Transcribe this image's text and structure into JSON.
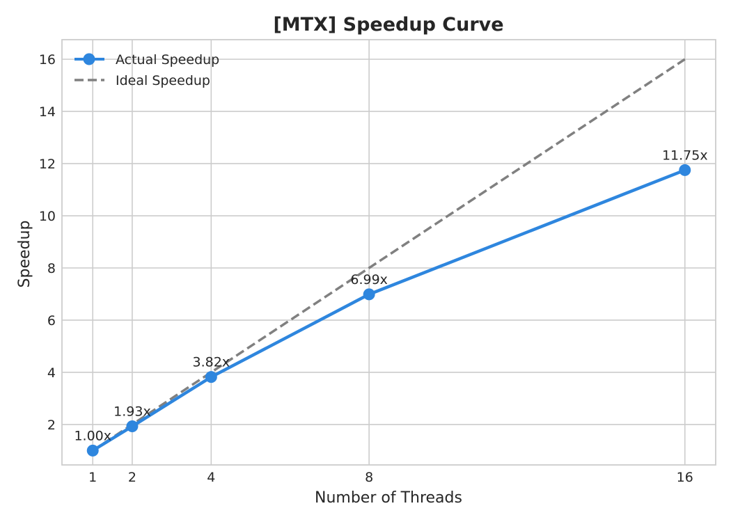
{
  "chart_data": {
    "type": "line",
    "title": "[MTX] Speedup Curve",
    "xlabel": "Number of Threads",
    "ylabel": "Speedup",
    "x": [
      1,
      2,
      4,
      8,
      16
    ],
    "xticks": [
      1,
      2,
      4,
      8,
      16
    ],
    "yticks": [
      2,
      4,
      6,
      8,
      10,
      12,
      14,
      16
    ],
    "xlim": [
      0.22,
      16.78
    ],
    "ylim": [
      0.45,
      16.75
    ],
    "grid": true,
    "legend_position": "top-left",
    "series": [
      {
        "name": "Actual Speedup",
        "values": [
          1.0,
          1.93,
          3.82,
          6.99,
          11.75
        ],
        "labels": [
          "1.00x",
          "1.93x",
          "3.82x",
          "6.99x",
          "11.75x"
        ],
        "color": "#2e86de",
        "style": "solid",
        "marker": "circle"
      },
      {
        "name": "Ideal Speedup",
        "values": [
          1,
          2,
          4,
          8,
          16
        ],
        "color": "#808080",
        "style": "dashed"
      }
    ]
  }
}
